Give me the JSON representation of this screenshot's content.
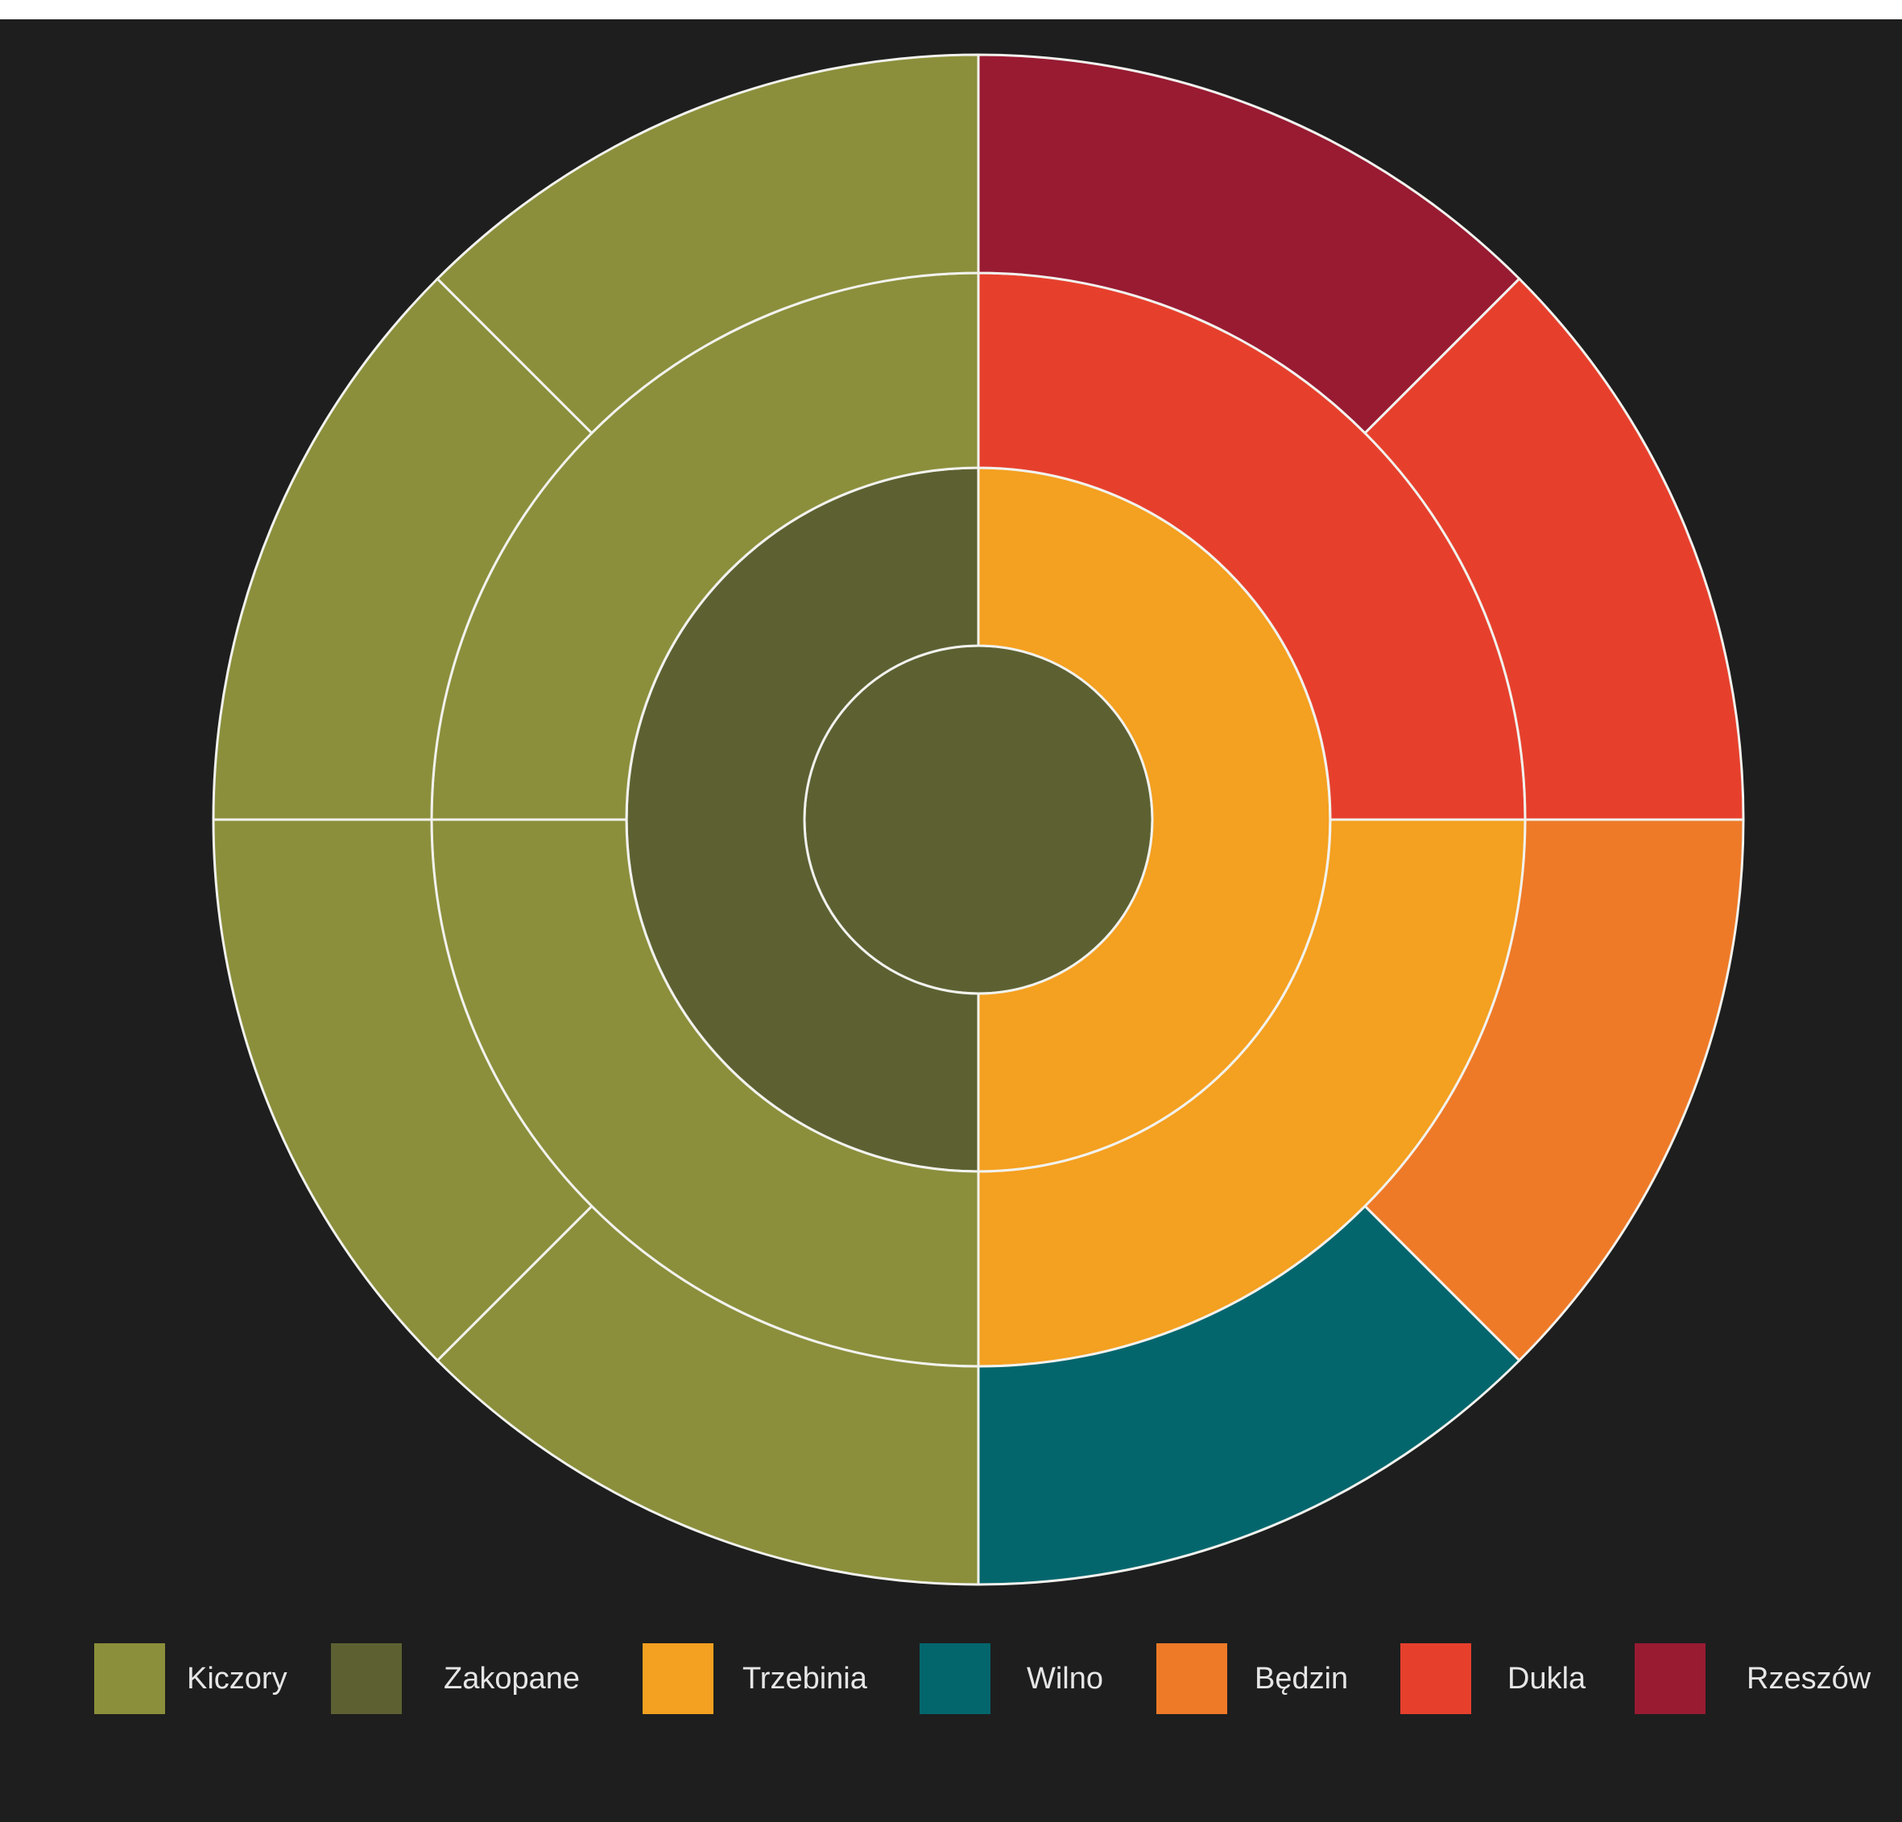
{
  "chart_data": {
    "type": "sunburst",
    "legend_position": "bottom",
    "grid": false,
    "legend": [
      {
        "name": "Kiczory",
        "color": "#8b8f3b"
      },
      {
        "name": "Zakopane",
        "color": "#5d6132"
      },
      {
        "name": "Trzebinia",
        "color": "#f4a020"
      },
      {
        "name": "Wilno",
        "color": "#04666d"
      },
      {
        "name": "Będzin",
        "color": "#ee7a28"
      },
      {
        "name": "Dukla",
        "color": "#e6402d"
      },
      {
        "name": "Rzeszów",
        "color": "#981b32"
      }
    ],
    "rings": [
      {
        "level": 1,
        "segments": [
          {
            "category": "Zakopane",
            "value": 1
          }
        ]
      },
      {
        "level": 2,
        "segments": [
          {
            "category": "Trzebinia",
            "value": 1
          },
          {
            "category": "Zakopane",
            "value": 1
          }
        ]
      },
      {
        "level": 3,
        "segments": [
          {
            "category": "Dukla",
            "value": 1
          },
          {
            "category": "Trzebinia",
            "value": 1
          },
          {
            "category": "Kiczory",
            "value": 1
          },
          {
            "category": "Kiczory",
            "value": 1
          }
        ]
      },
      {
        "level": 4,
        "segments": [
          {
            "category": "Rzeszów",
            "value": 1
          },
          {
            "category": "Dukla",
            "value": 1
          },
          {
            "category": "Będzin",
            "value": 1
          },
          {
            "category": "Wilno",
            "value": 1
          },
          {
            "category": "Kiczory",
            "value": 1
          },
          {
            "category": "Kiczory",
            "value": 1
          },
          {
            "category": "Kiczory",
            "value": 1
          },
          {
            "category": "Kiczory",
            "value": 1
          }
        ]
      }
    ]
  }
}
